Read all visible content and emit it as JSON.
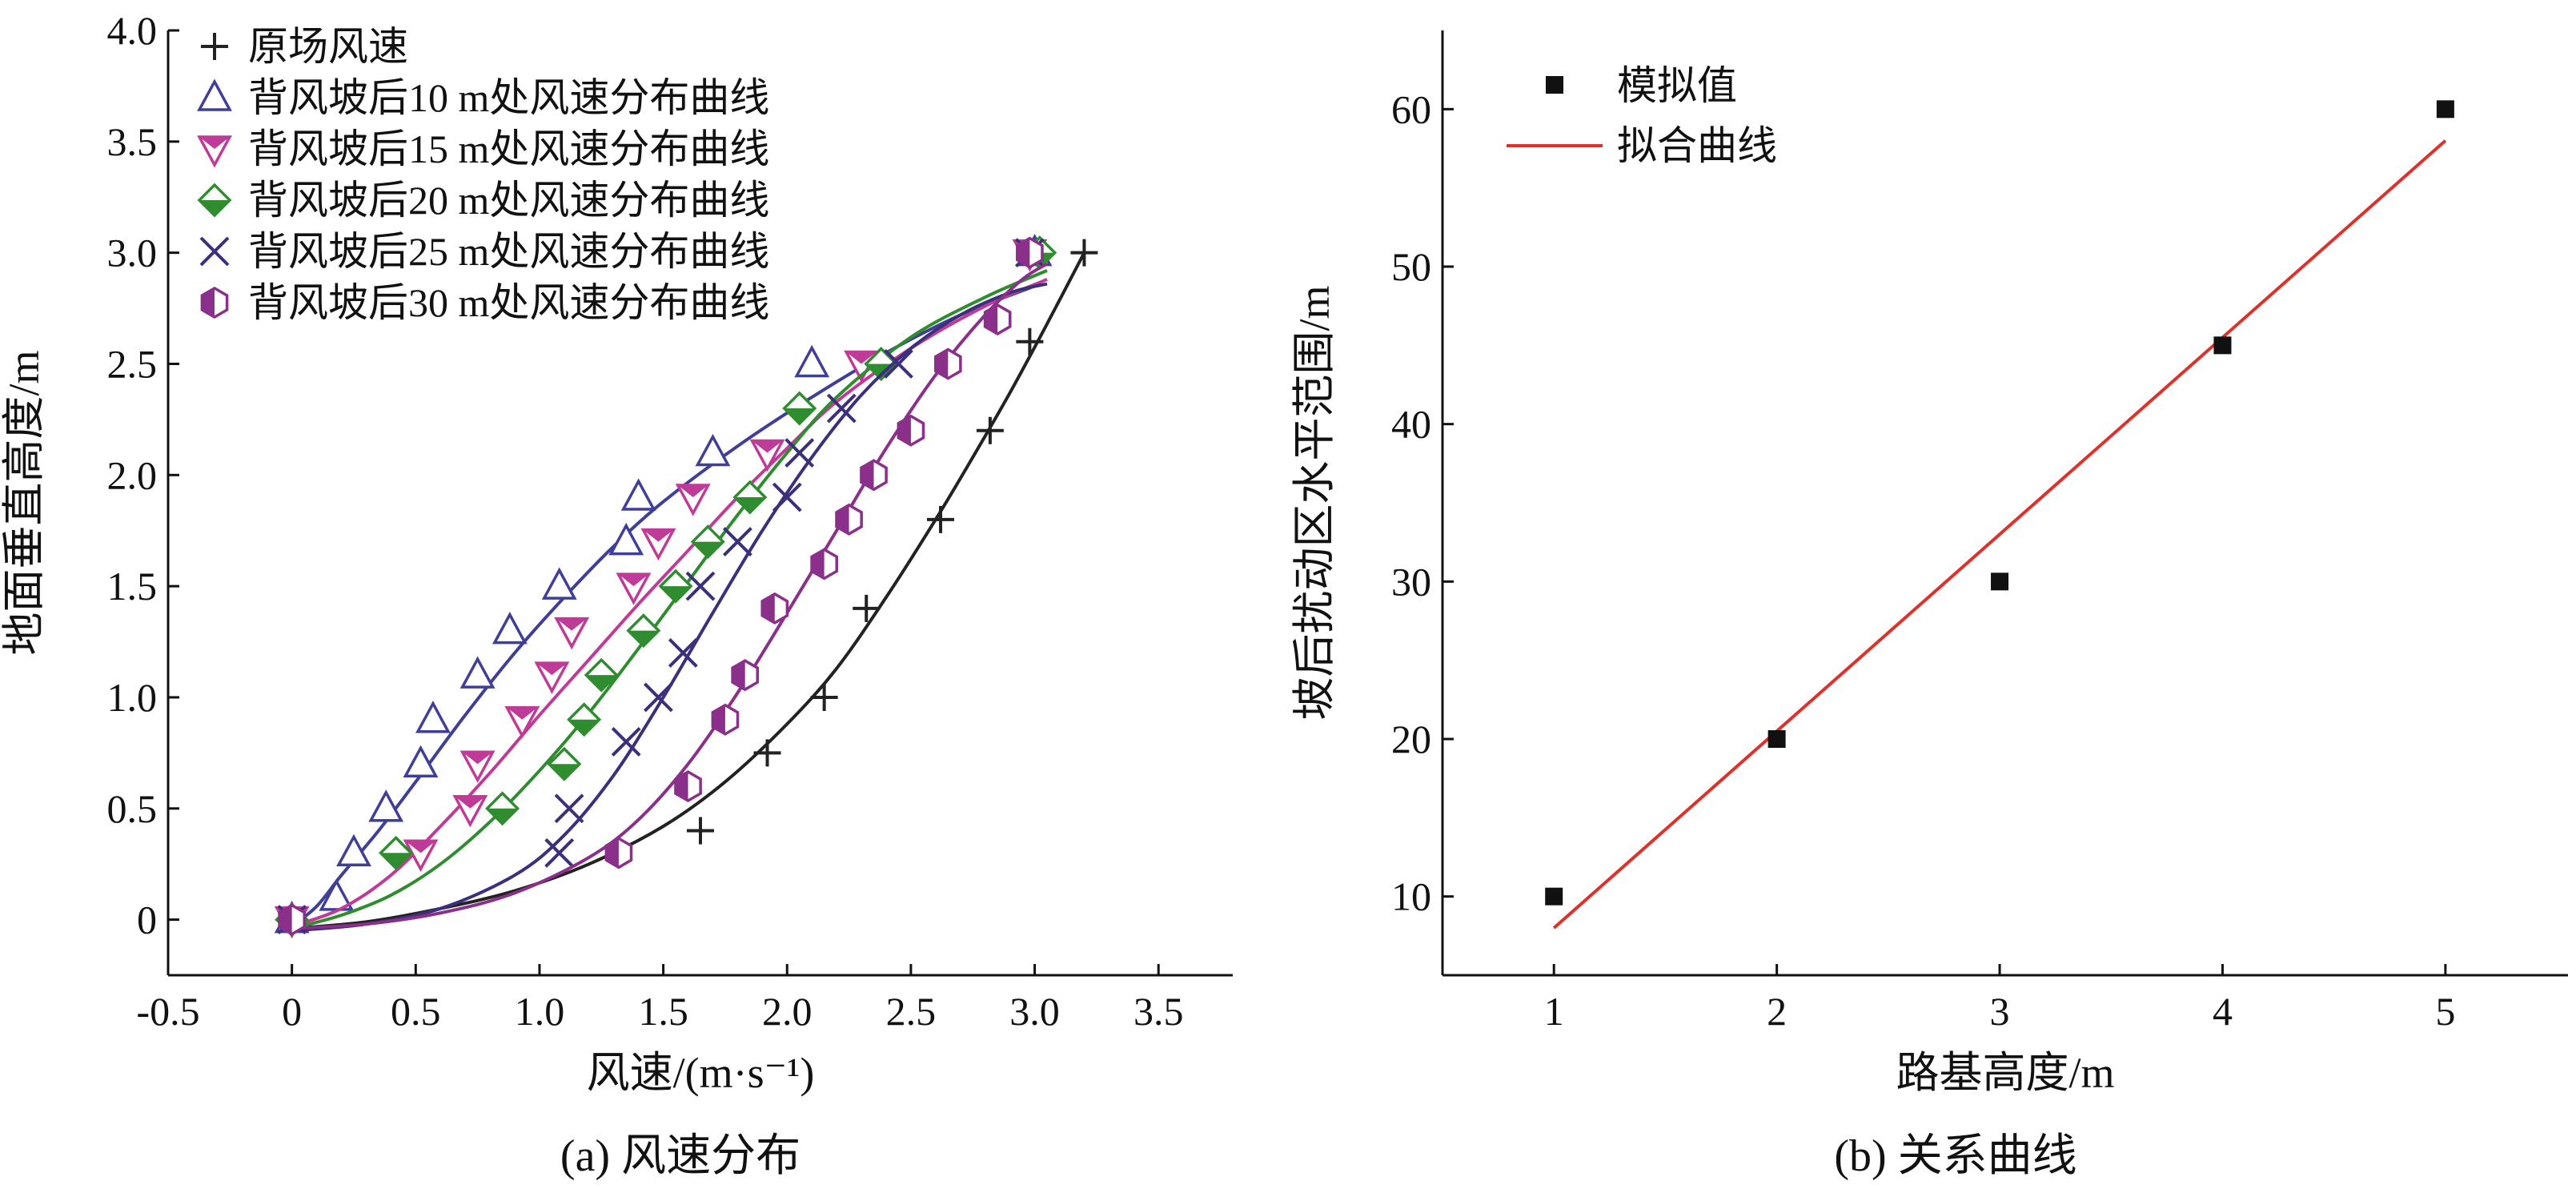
{
  "figure": {
    "panel_a_caption": "(a) 风速分布",
    "panel_b_caption": "(b) 关系曲线"
  },
  "chart_data": [
    {
      "type": "scatter",
      "title": "",
      "xlabel": "风速/(m·s⁻¹)",
      "ylabel": "地面垂直高度/m",
      "xlim": [
        -0.5,
        3.8
      ],
      "ylim": [
        -0.25,
        4.0
      ],
      "xticks": [
        -0.5,
        0,
        0.5,
        1.0,
        1.5,
        2.0,
        2.5,
        3.0,
        3.5
      ],
      "xtick_labels": [
        "-0.5",
        "0",
        "0.5",
        "1.0",
        "1.5",
        "2.0",
        "2.5",
        "3.0",
        "3.5"
      ],
      "yticks": [
        0,
        0.5,
        1.0,
        1.5,
        2.0,
        2.5,
        3.0,
        3.5,
        4.0
      ],
      "ytick_labels": [
        "0",
        "0.5",
        "1.0",
        "1.5",
        "2.0",
        "2.5",
        "3.0",
        "3.5",
        "4.0"
      ],
      "grid": false,
      "legend_position": "top-left",
      "series": [
        {
          "name": "原场风速",
          "marker": "plus",
          "color": "#222222",
          "x": [
            0,
            1.65,
            1.92,
            2.15,
            2.32,
            2.62,
            2.82,
            2.98,
            3.2
          ],
          "y": [
            0,
            0.4,
            0.75,
            1.0,
            1.4,
            1.8,
            2.2,
            2.6,
            3.0
          ],
          "fit_x": [
            0,
            0.3,
            0.6,
            0.9,
            1.2,
            1.5,
            1.75,
            2.0,
            2.2,
            2.4,
            2.6,
            2.75,
            2.9,
            3.05,
            3.2
          ],
          "fit_y": [
            -0.04,
            -0.01,
            0.05,
            0.13,
            0.25,
            0.42,
            0.62,
            0.88,
            1.13,
            1.45,
            1.8,
            2.08,
            2.37,
            2.68,
            3.0
          ]
        },
        {
          "name": "背风坡后10 m处风速分布曲线",
          "marker": "triangle-up",
          "color": "#3f3f9a",
          "x": [
            0,
            0.18,
            0.25,
            0.38,
            0.52,
            0.57,
            0.75,
            0.88,
            1.08,
            1.35,
            1.4,
            1.7,
            2.1,
            3.0
          ],
          "y": [
            0,
            0.1,
            0.3,
            0.5,
            0.7,
            0.9,
            1.1,
            1.3,
            1.5,
            1.7,
            1.9,
            2.1,
            2.5,
            3.0
          ],
          "fit_x": [
            0,
            0.1,
            0.2,
            0.35,
            0.5,
            0.7,
            0.9,
            1.1,
            1.3,
            1.5,
            1.8,
            2.1,
            2.4,
            2.7,
            3.0
          ],
          "fit_y": [
            -0.03,
            0.06,
            0.2,
            0.4,
            0.62,
            0.92,
            1.2,
            1.45,
            1.68,
            1.88,
            2.13,
            2.35,
            2.55,
            2.72,
            2.85
          ]
        },
        {
          "name": "背风坡后15 m处风速分布曲线",
          "marker": "triangle-down",
          "color": "#c03a97",
          "x": [
            0,
            0.52,
            0.72,
            0.75,
            0.93,
            1.05,
            1.13,
            1.38,
            1.48,
            1.62,
            1.92,
            2.3,
            2.98
          ],
          "y": [
            0,
            0.3,
            0.5,
            0.7,
            0.9,
            1.1,
            1.3,
            1.5,
            1.7,
            1.9,
            2.1,
            2.5,
            3.0
          ],
          "fit_x": [
            0,
            0.2,
            0.4,
            0.6,
            0.8,
            1.0,
            1.2,
            1.4,
            1.6,
            1.8,
            2.0,
            2.2,
            2.5,
            2.8,
            3.05
          ],
          "fit_y": [
            -0.03,
            0.05,
            0.2,
            0.42,
            0.66,
            0.92,
            1.17,
            1.42,
            1.66,
            1.9,
            2.12,
            2.33,
            2.57,
            2.76,
            2.88
          ]
        },
        {
          "name": "背风坡后20 m处风速分布曲线",
          "marker": "diamond-half",
          "color": "#2f8c2f",
          "x": [
            0,
            0.42,
            0.85,
            1.1,
            1.18,
            1.25,
            1.42,
            1.55,
            1.68,
            1.85,
            2.05,
            2.38,
            3.02
          ],
          "y": [
            0,
            0.3,
            0.5,
            0.7,
            0.9,
            1.1,
            1.3,
            1.5,
            1.7,
            1.9,
            2.3,
            2.5,
            3.0
          ],
          "fit_x": [
            0,
            0.2,
            0.4,
            0.6,
            0.8,
            1.0,
            1.2,
            1.4,
            1.6,
            1.8,
            2.0,
            2.2,
            2.5,
            2.8,
            3.05
          ],
          "fit_y": [
            -0.04,
            0.02,
            0.11,
            0.25,
            0.44,
            0.67,
            0.93,
            1.22,
            1.52,
            1.82,
            2.1,
            2.35,
            2.62,
            2.8,
            2.92
          ]
        },
        {
          "name": "背风坡后25 m处风速分布曲线",
          "marker": "x",
          "color": "#3c2f7c",
          "x": [
            0,
            1.08,
            1.12,
            1.35,
            1.48,
            1.58,
            1.65,
            1.8,
            2.0,
            2.05,
            2.22,
            2.45,
            2.98
          ],
          "y": [
            0,
            0.3,
            0.5,
            0.8,
            1.0,
            1.2,
            1.5,
            1.7,
            1.9,
            2.1,
            2.3,
            2.5,
            3.0
          ],
          "fit_x": [
            0,
            0.3,
            0.6,
            0.9,
            1.1,
            1.3,
            1.5,
            1.7,
            1.9,
            2.1,
            2.3,
            2.5,
            2.7,
            2.9,
            3.05
          ],
          "fit_y": [
            -0.05,
            -0.02,
            0.05,
            0.2,
            0.38,
            0.65,
            1.0,
            1.38,
            1.75,
            2.08,
            2.36,
            2.57,
            2.72,
            2.82,
            2.86
          ]
        },
        {
          "name": "背风坡后30 m处风速分布曲线",
          "marker": "hexagon-half",
          "color": "#8a2f8a",
          "x": [
            0,
            1.32,
            1.6,
            1.75,
            1.83,
            1.95,
            2.15,
            2.25,
            2.35,
            2.5,
            2.65,
            2.85,
            2.98
          ],
          "y": [
            0,
            0.3,
            0.6,
            0.9,
            1.1,
            1.4,
            1.6,
            1.8,
            2.0,
            2.2,
            2.5,
            2.7,
            3.0
          ],
          "fit_x": [
            0,
            0.3,
            0.6,
            0.9,
            1.2,
            1.4,
            1.6,
            1.8,
            2.0,
            2.2,
            2.4,
            2.6,
            2.8,
            2.95,
            3.05
          ],
          "fit_y": [
            -0.04,
            -0.02,
            0.03,
            0.12,
            0.28,
            0.45,
            0.7,
            1.02,
            1.38,
            1.75,
            2.12,
            2.45,
            2.72,
            2.88,
            2.95
          ]
        }
      ]
    },
    {
      "type": "scatter",
      "title": "",
      "xlabel": "路基高度/m",
      "ylabel": "坡后扰动区水平范围/m",
      "xlim": [
        0.5,
        5.55
      ],
      "ylim": [
        5,
        65
      ],
      "xticks": [
        1,
        2,
        3,
        4,
        5
      ],
      "xtick_labels": [
        "1",
        "2",
        "3",
        "4",
        "5"
      ],
      "yticks": [
        10,
        20,
        30,
        40,
        50,
        60
      ],
      "ytick_labels": [
        "10",
        "20",
        "30",
        "40",
        "50",
        "60"
      ],
      "grid": false,
      "legend_position": "top-left",
      "series": [
        {
          "name": "模拟值",
          "marker": "square",
          "color": "#111111",
          "x": [
            1,
            2,
            3,
            4,
            5
          ],
          "y": [
            10,
            20,
            30,
            45,
            60
          ]
        },
        {
          "name": "拟合曲线",
          "marker": "line",
          "color": "#e0302a",
          "x": [
            1,
            5
          ],
          "y": [
            8,
            58
          ]
        }
      ]
    }
  ]
}
